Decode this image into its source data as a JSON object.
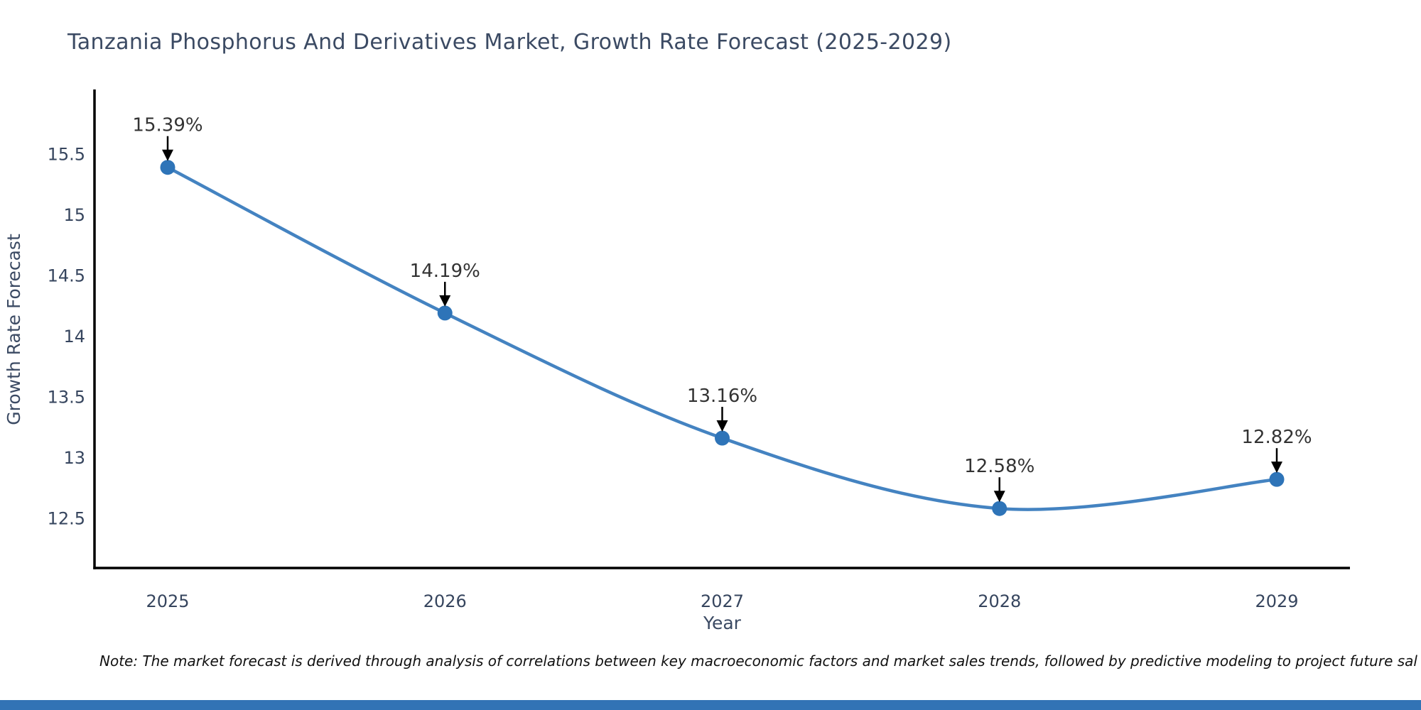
{
  "page": {
    "background": "#ffffff",
    "footer_bar_color": "#3273b5"
  },
  "chart_data": {
    "type": "line",
    "title": "Tanzania Phosphorus And Derivatives Market, Growth Rate Forecast (2025-2029)",
    "xlabel": "Year",
    "ylabel": "Growth Rate Forecast",
    "x": [
      2025,
      2026,
      2027,
      2028,
      2029
    ],
    "series": [
      {
        "name": "Growth Rate Forecast",
        "values": [
          15.39,
          14.19,
          13.16,
          12.58,
          12.82
        ]
      }
    ],
    "point_labels": [
      "15.39%",
      "14.19%",
      "13.16%",
      "12.58%",
      "12.82%"
    ],
    "yticks": [
      12.5,
      13,
      13.5,
      14,
      14.5,
      15,
      15.5
    ],
    "ylim": [
      12.09,
      16.02
    ],
    "grid": false,
    "legend_position": "none",
    "line_color": "#4483c1",
    "marker_color": "#2e74b8",
    "axis_color": "#000000",
    "tick_label_color": "#36455e",
    "axis_title_color": "#3b4a63",
    "annotation_color": "#333333",
    "annotation_arrow_color": "#000000"
  },
  "note": {
    "text": "Note: The market forecast is derived through analysis of correlations between key macroeconomic factors and market sales trends, followed by predictive modeling to project future sal"
  }
}
